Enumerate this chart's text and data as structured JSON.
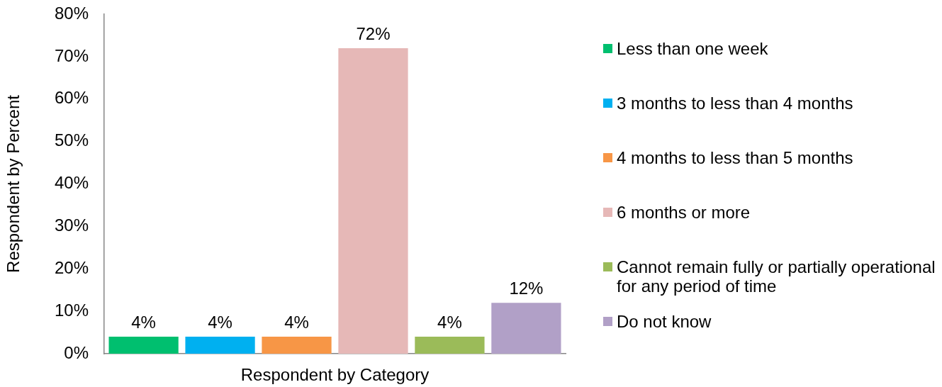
{
  "chart_data": {
    "type": "bar",
    "categories": [
      null
    ],
    "xlabel": "Respondent by Category",
    "ylabel": "Respondent by Percent",
    "ylim": [
      0,
      80
    ],
    "yticks": [
      {
        "value": 0,
        "label": "0%"
      },
      {
        "value": 10,
        "label": "10%"
      },
      {
        "value": 20,
        "label": "20%"
      },
      {
        "value": 30,
        "label": "30%"
      },
      {
        "value": 40,
        "label": "40%"
      },
      {
        "value": 50,
        "label": "50%"
      },
      {
        "value": 60,
        "label": "60%"
      },
      {
        "value": 70,
        "label": "70%"
      },
      {
        "value": 80,
        "label": "80%"
      }
    ],
    "legend": "right",
    "grid": false,
    "series": [
      {
        "name": "Less than one week",
        "color": "#00bf6f",
        "values": [
          4
        ],
        "value_labels": [
          "4%"
        ]
      },
      {
        "name": "3 months to less than 4 months",
        "color": "#00b0f0",
        "values": [
          4
        ],
        "value_labels": [
          "4%"
        ]
      },
      {
        "name": "4 months to less than 5 months",
        "color": "#f79646",
        "values": [
          4
        ],
        "value_labels": [
          "4%"
        ]
      },
      {
        "name": "6 months or more",
        "color": "#e6b8b7",
        "values": [
          72
        ],
        "value_labels": [
          "72%"
        ]
      },
      {
        "name": "Cannot remain fully or partially operational for any period of time",
        "color": "#9bbb59",
        "values": [
          4
        ],
        "value_labels": [
          "4%"
        ]
      },
      {
        "name": "Do not know",
        "color": "#b1a0c7",
        "values": [
          12
        ],
        "value_labels": [
          "12%"
        ]
      }
    ]
  }
}
